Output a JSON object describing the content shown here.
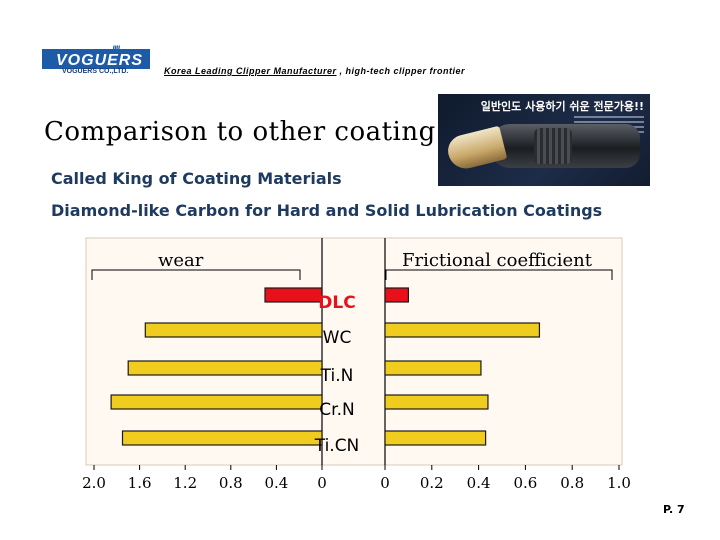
{
  "header": {
    "logo_word": "VOGUERS",
    "logo_company": "VOGUERS CO.,LTD.",
    "tagline_underlined": "Korea Leading Clipper Manufacturer",
    "tagline_rest": ", high-tech clipper frontier"
  },
  "photo": {
    "korean_text": "일반인도 사용하기 쉬운 전문가용!!"
  },
  "headline": "Comparison to other coating",
  "subtitle_1": "Called King of Coating Materials",
  "subtitle_2": "Diamond-like Carbon for Hard and Solid Lubrication Coatings",
  "page_number": "P. 7",
  "colors": {
    "highlight": "#e8101a",
    "bar": "#f0cc1e",
    "chart_bg": "#fff9f2"
  },
  "chart_data": {
    "type": "bar",
    "orientation": "horizontal",
    "layout": "back-to-back",
    "categories": [
      "DLC",
      "WC",
      "Ti.N",
      "Cr.N",
      "Ti.CN"
    ],
    "highlight_category": "DLC",
    "series": [
      {
        "name": "wear",
        "values": [
          0.5,
          1.55,
          1.7,
          1.85,
          1.75
        ],
        "xlim": [
          2.0,
          0
        ],
        "ticks": [
          {
            "value": 2.0,
            "label": "2.0"
          },
          {
            "value": 1.6,
            "label": "1.6"
          },
          {
            "value": 1.2,
            "label": "1.2"
          },
          {
            "value": 0.8,
            "label": "0.8"
          },
          {
            "value": 0.4,
            "label": "0.4"
          },
          {
            "value": 0,
            "label": "0"
          }
        ]
      },
      {
        "name": "Frictional coefficient",
        "values": [
          0.1,
          0.66,
          0.41,
          0.44,
          0.43
        ],
        "xlim": [
          0,
          1.0
        ],
        "ticks": [
          {
            "value": 0,
            "label": "0"
          },
          {
            "value": 0.2,
            "label": "0.2"
          },
          {
            "value": 0.4,
            "label": "0.4"
          },
          {
            "value": 0.6,
            "label": "0.6"
          },
          {
            "value": 0.8,
            "label": "0.8"
          },
          {
            "value": 1.0,
            "label": "1.0"
          }
        ]
      }
    ]
  }
}
